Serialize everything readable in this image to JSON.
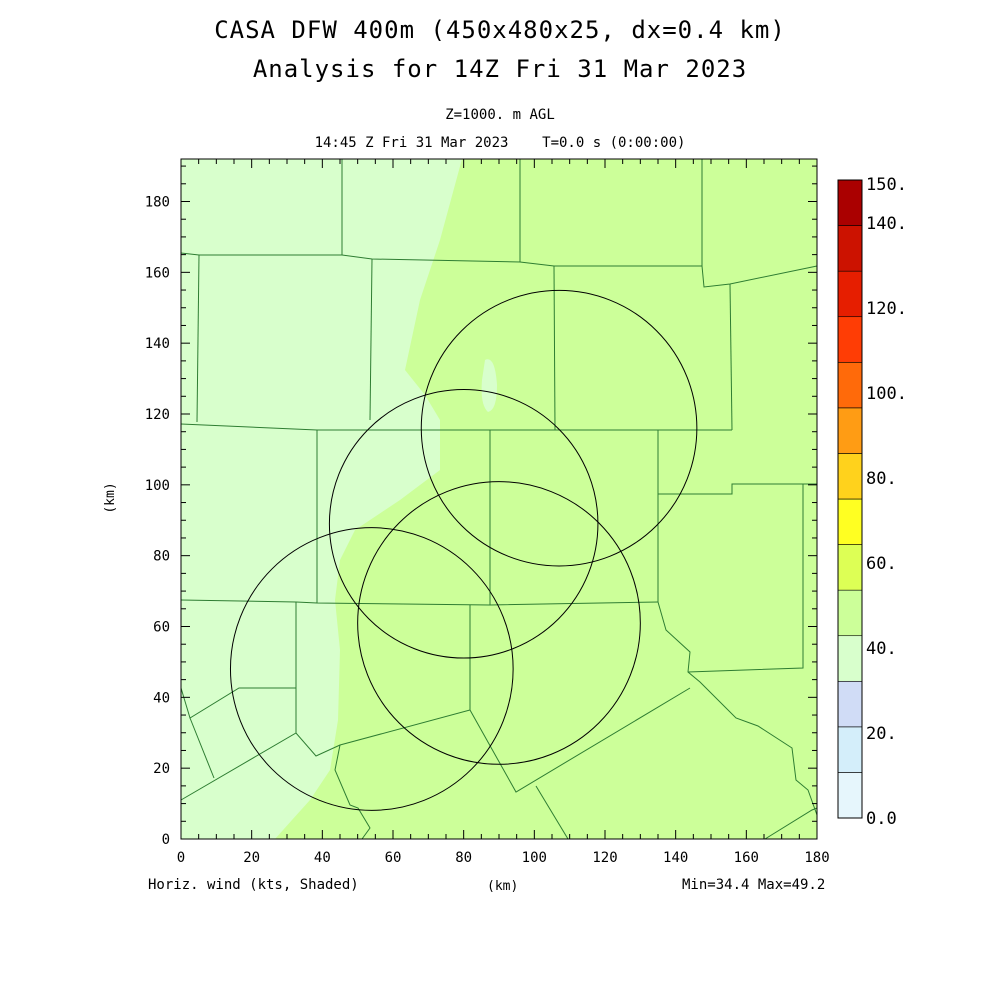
{
  "header": {
    "title_line1": "CASA DFW 400m (450x480x25, dx=0.4 km)",
    "title_line2": "Analysis for 14Z Fri 31 Mar 2023",
    "level": "Z=1000. m AGL",
    "time": "14:45 Z Fri 31 Mar 2023    T=0.0 s (0:00:00)"
  },
  "footer": {
    "field_label": "Horiz. wind (kts, Shaded)",
    "x_unit": "(km)",
    "minmax": "Min=34.4 Max=49.2"
  },
  "axes": {
    "x_label": "(km)",
    "y_label": "(km)",
    "x_range": [
      0,
      180
    ],
    "y_range": [
      0,
      192
    ],
    "x_ticks": [
      "0",
      "20",
      "40",
      "60",
      "80",
      "100",
      "120",
      "140",
      "160",
      "180"
    ],
    "y_ticks": [
      "0",
      "20",
      "40",
      "60",
      "80",
      "100",
      "120",
      "140",
      "160",
      "180"
    ]
  },
  "colorbar": {
    "labels": [
      "0.0",
      "20.",
      "40.",
      "60.",
      "80.",
      "100.",
      "120.",
      "140.",
      "150."
    ],
    "colors": [
      "#e6f6fc",
      "#d4eefa",
      "#d0dcf6",
      "#d8ffcc",
      "#ccff99",
      "#ddff55",
      "#ffff22",
      "#ffd21c",
      "#ff9c14",
      "#ff6a0a",
      "#ff3d05",
      "#e61e00",
      "#cc1200",
      "#aa0000"
    ],
    "map_fill_dominant": "#ccff99",
    "map_fill_light": "#d8ffcc"
  },
  "radar_circles_km": [
    {
      "cx": 107,
      "cy": 116,
      "r": 39
    },
    {
      "cx": 80,
      "cy": 89,
      "r": 38
    },
    {
      "cx": 90,
      "cy": 61,
      "r": 40
    },
    {
      "cx": 54,
      "cy": 48,
      "r": 40
    }
  ]
}
